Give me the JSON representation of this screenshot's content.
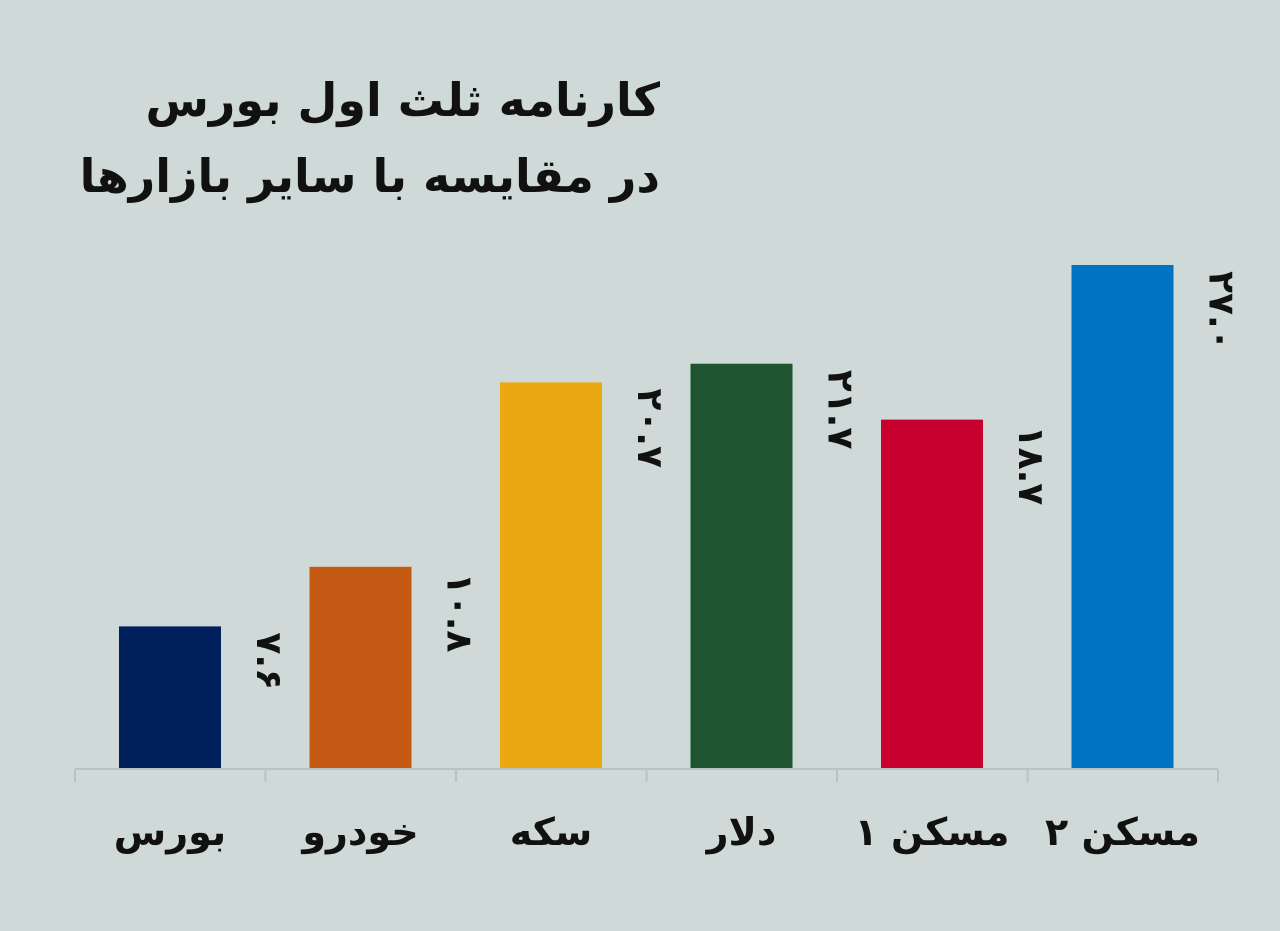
{
  "title_line1": "کارنامه ثلث اول بورس",
  "title_line2": "در مقایسه با سایر بازارها",
  "chart_data": {
    "type": "bar",
    "title": "کارنامه ثلث اول بورس در مقایسه با سایر بازارها",
    "categories": [
      "بورس",
      "خودرو",
      "سکه",
      "دلار",
      "مسکن ۱",
      "مسکن ۲"
    ],
    "values": [
      7.6,
      10.8,
      20.7,
      21.7,
      18.7,
      27.0
    ],
    "value_labels": [
      "۷.۶",
      "۱۰.۸",
      "۲۰.۷",
      "۲۱.۷",
      "۱۸.۷",
      "۲۷.۰"
    ],
    "colors": [
      "#00205b",
      "#c55a14",
      "#eba812",
      "#1e5530",
      "#c8002f",
      "#0072c3"
    ],
    "ylim": [
      0,
      27.5
    ],
    "grid": false,
    "legend": "none"
  }
}
